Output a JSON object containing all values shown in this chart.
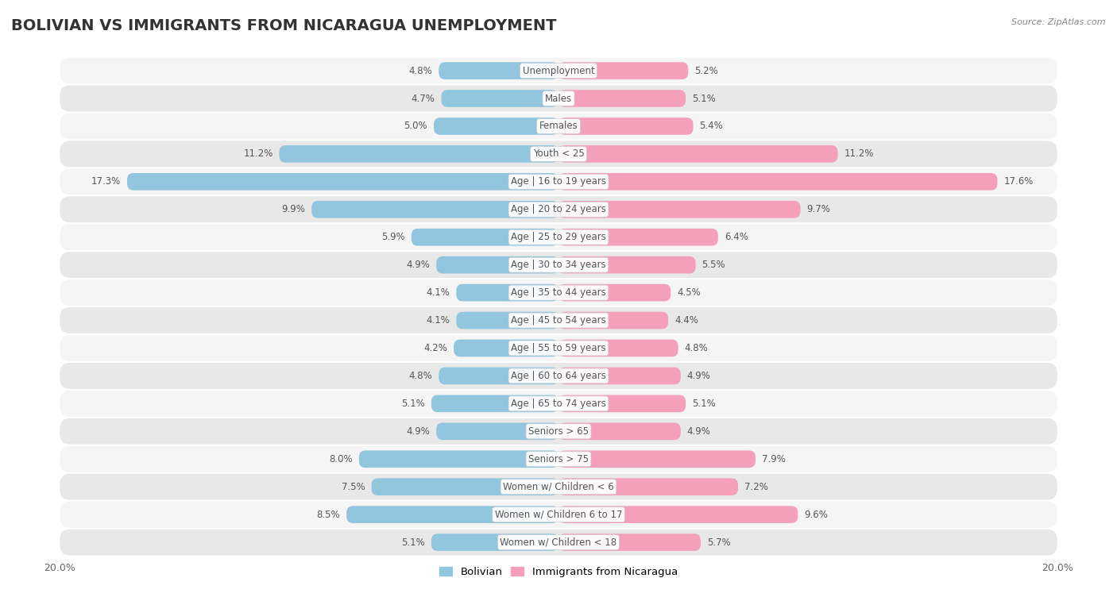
{
  "title": "BOLIVIAN VS IMMIGRANTS FROM NICARAGUA UNEMPLOYMENT",
  "source": "Source: ZipAtlas.com",
  "categories": [
    "Unemployment",
    "Males",
    "Females",
    "Youth < 25",
    "Age | 16 to 19 years",
    "Age | 20 to 24 years",
    "Age | 25 to 29 years",
    "Age | 30 to 34 years",
    "Age | 35 to 44 years",
    "Age | 45 to 54 years",
    "Age | 55 to 59 years",
    "Age | 60 to 64 years",
    "Age | 65 to 74 years",
    "Seniors > 65",
    "Seniors > 75",
    "Women w/ Children < 6",
    "Women w/ Children 6 to 17",
    "Women w/ Children < 18"
  ],
  "bolivian": [
    4.8,
    4.7,
    5.0,
    11.2,
    17.3,
    9.9,
    5.9,
    4.9,
    4.1,
    4.1,
    4.2,
    4.8,
    5.1,
    4.9,
    8.0,
    7.5,
    8.5,
    5.1
  ],
  "nicaragua": [
    5.2,
    5.1,
    5.4,
    11.2,
    17.6,
    9.7,
    6.4,
    5.5,
    4.5,
    4.4,
    4.8,
    4.9,
    5.1,
    4.9,
    7.9,
    7.2,
    9.6,
    5.7
  ],
  "bolivian_color": "#92c5de",
  "nicaragua_color": "#f4a0bb",
  "row_color_even": "#f5f5f5",
  "row_color_odd": "#e8e8e8",
  "bg_color": "#ffffff",
  "max_val": 20.0,
  "title_fontsize": 14,
  "label_fontsize": 8.5,
  "value_fontsize": 8.5
}
